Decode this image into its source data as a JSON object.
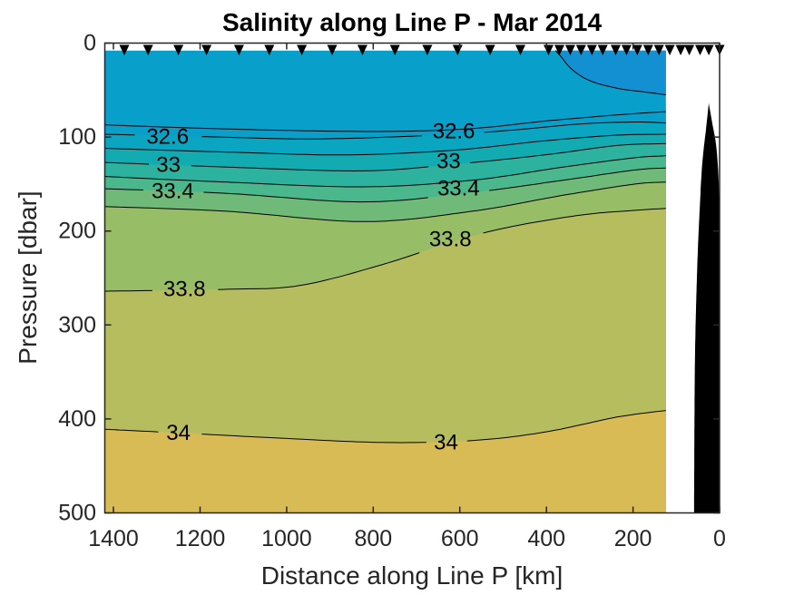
{
  "figure": {
    "background": "#ffffff",
    "frame_color": "#262626",
    "contour_line_color": "#000000",
    "bathymetry_color": "#000000",
    "station_marker_color": "#000000"
  },
  "chart_data": {
    "type": "filled-contour-section",
    "title": "Salinity along Line P - Mar 2014",
    "xlabel": "Distance along Line P [km]",
    "ylabel": "Pressure [dbar]",
    "x_axis": {
      "min": 0,
      "max": 1420,
      "reversed": true,
      "ticks": [
        1400,
        1200,
        1000,
        800,
        600,
        400,
        200,
        0
      ]
    },
    "y_axis": {
      "min": 0,
      "max": 500,
      "reversed": true,
      "ticks": [
        0,
        100,
        200,
        300,
        400,
        500
      ]
    },
    "contour_interval": 0.2,
    "data_min_km": 124,
    "surface_dbar": 8,
    "station_distances_km": [
      1375,
      1320,
      1250,
      1185,
      1110,
      1040,
      965,
      895,
      825,
      750,
      675,
      605,
      530,
      460,
      395,
      370,
      345,
      320,
      295,
      270,
      240,
      215,
      190,
      165,
      140,
      115,
      90,
      70,
      45,
      25,
      0
    ],
    "bands": [
      {
        "label": "< 32.2",
        "color": "#1290d2"
      },
      {
        "label": "32.2 - 32.4",
        "color": "#089fcb"
      },
      {
        "label": "32.4 - 32.6",
        "color": "#099fc9"
      },
      {
        "label": "32.6 - 32.8",
        "color": "#0aa5c1"
      },
      {
        "label": "32.8 - 33.0",
        "color": "#12abb2"
      },
      {
        "label": "33.0 - 33.2",
        "color": "#2eb2a0"
      },
      {
        "label": "33.2 - 33.4",
        "color": "#4bb78d"
      },
      {
        "label": "33.4 - 33.6",
        "color": "#6fba78"
      },
      {
        "label": "33.6 - 33.8",
        "color": "#97bd67"
      },
      {
        "label": "33.8 - 34.0",
        "color": "#b6bd5f"
      },
      {
        "label": "> 34.0",
        "color": "#d8bb55"
      }
    ],
    "contours": [
      {
        "level": 32.2,
        "label_text": "32.2",
        "labels": [],
        "points": [
          [
            379,
            8
          ],
          [
            367,
            14
          ],
          [
            341,
            28
          ],
          [
            300,
            40
          ],
          [
            237,
            48
          ],
          [
            174,
            52
          ],
          [
            124,
            55
          ]
        ]
      },
      {
        "level": 32.4,
        "label_text": "32.4",
        "labels": [],
        "points": [
          [
            1420,
            87
          ],
          [
            1242,
            90
          ],
          [
            991,
            93
          ],
          [
            760,
            94
          ],
          [
            572,
            91
          ],
          [
            404,
            83
          ],
          [
            279,
            78
          ],
          [
            195,
            75
          ],
          [
            124,
            73
          ]
        ]
      },
      {
        "level": 32.6,
        "label_text": "32.6",
        "labels": [
          {
            "km": 1275,
            "dbar": 100
          },
          {
            "km": 614,
            "dbar": 94
          }
        ],
        "points": [
          [
            1420,
            97
          ],
          [
            1158,
            100
          ],
          [
            928,
            102
          ],
          [
            656,
            98
          ],
          [
            488,
            93
          ],
          [
            320,
            86
          ],
          [
            195,
            84
          ],
          [
            124,
            85
          ]
        ]
      },
      {
        "level": 32.8,
        "label_text": "32.8",
        "labels": [],
        "points": [
          [
            1420,
            112
          ],
          [
            1137,
            116
          ],
          [
            865,
            119
          ],
          [
            614,
            114
          ],
          [
            404,
            104
          ],
          [
            237,
            98
          ],
          [
            124,
            97
          ]
        ]
      },
      {
        "level": 33,
        "label_text": "33",
        "labels": [
          {
            "km": 1273,
            "dbar": 130
          },
          {
            "km": 626,
            "dbar": 126
          }
        ],
        "points": [
          [
            1420,
            127
          ],
          [
            1137,
            132
          ],
          [
            823,
            136
          ],
          [
            614,
            129
          ],
          [
            404,
            119
          ],
          [
            237,
            109
          ],
          [
            124,
            107
          ]
        ]
      },
      {
        "level": 33.2,
        "label_text": "33.2",
        "labels": [],
        "points": [
          [
            1420,
            142
          ],
          [
            1137,
            148
          ],
          [
            823,
            153
          ],
          [
            572,
            146
          ],
          [
            362,
            132
          ],
          [
            195,
            122
          ],
          [
            124,
            120
          ]
        ]
      },
      {
        "level": 33.4,
        "label_text": "33.4",
        "labels": [
          {
            "km": 1263,
            "dbar": 158
          },
          {
            "km": 603,
            "dbar": 155
          }
        ],
        "points": [
          [
            1420,
            155
          ],
          [
            1137,
            160
          ],
          [
            823,
            169
          ],
          [
            572,
            159
          ],
          [
            362,
            146
          ],
          [
            195,
            135
          ],
          [
            124,
            133
          ]
        ]
      },
      {
        "level": 33.6,
        "label_text": "33.6",
        "labels": [],
        "points": [
          [
            1420,
            174
          ],
          [
            1137,
            179
          ],
          [
            823,
            190
          ],
          [
            572,
            179
          ],
          [
            362,
            162
          ],
          [
            195,
            150
          ],
          [
            124,
            148
          ]
        ]
      },
      {
        "level": 33.8,
        "label_text": "33.8",
        "labels": [
          {
            "km": 1236,
            "dbar": 262
          },
          {
            "km": 622,
            "dbar": 209
          }
        ],
        "points": [
          [
            1420,
            264
          ],
          [
            1137,
            262
          ],
          [
            970,
            258
          ],
          [
            781,
            236
          ],
          [
            614,
            211
          ],
          [
            488,
            196
          ],
          [
            320,
            183
          ],
          [
            195,
            178
          ],
          [
            124,
            176
          ]
        ]
      },
      {
        "level": 34,
        "label_text": "34",
        "labels": [
          {
            "km": 1250,
            "dbar": 415
          },
          {
            "km": 632,
            "dbar": 425
          }
        ],
        "points": [
          [
            1420,
            411
          ],
          [
            1242,
            415
          ],
          [
            1033,
            420
          ],
          [
            781,
            425
          ],
          [
            572,
            423
          ],
          [
            404,
            414
          ],
          [
            237,
            398
          ],
          [
            124,
            391
          ]
        ]
      }
    ],
    "bathymetry": {
      "left_edge": [
        [
          25,
          64
        ],
        [
          31,
          90
        ],
        [
          40,
          128
        ],
        [
          46,
          177
        ],
        [
          52,
          244
        ],
        [
          57,
          341
        ],
        [
          59,
          500
        ]
      ],
      "right_edge": [
        [
          0,
          206
        ],
        [
          2,
          148
        ],
        [
          8,
          109
        ],
        [
          17,
          85
        ],
        [
          25,
          64
        ]
      ]
    }
  }
}
